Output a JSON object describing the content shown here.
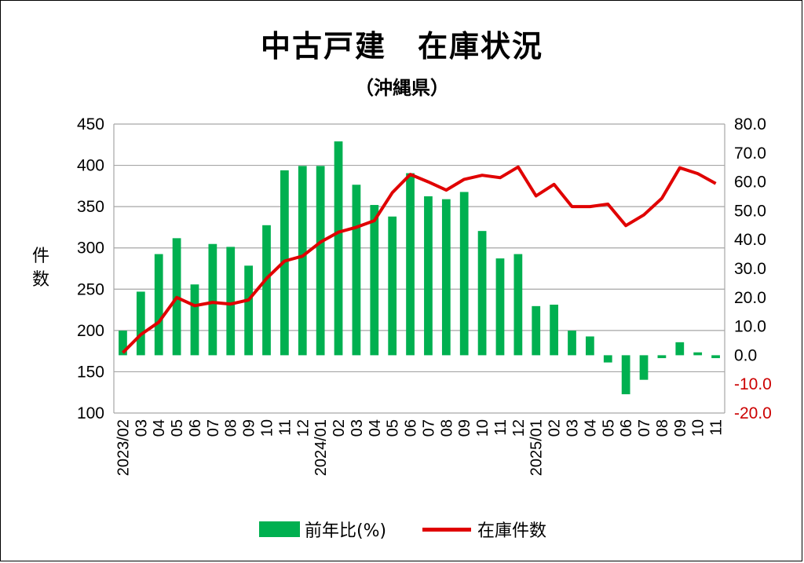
{
  "chart_data": {
    "type": "bar+line",
    "title": "中古戸建　在庫状況",
    "subtitle": "（沖縄県）",
    "ylabel": "件数",
    "y_left_range": [
      100,
      450
    ],
    "y_left_ticks": [
      "450",
      "400",
      "350",
      "300",
      "250",
      "200",
      "150",
      "100"
    ],
    "y_right_range": [
      -20,
      80
    ],
    "y_right_ticks": [
      "80.0",
      "70.0",
      "60.0",
      "50.0",
      "40.0",
      "30.0",
      "20.0",
      "10.0",
      "0.0",
      "-10.0",
      "-20.0"
    ],
    "y_right_negative_color": "#cc0000",
    "grid": true,
    "categories": [
      "2023/02",
      "03",
      "04",
      "05",
      "06",
      "07",
      "08",
      "09",
      "10",
      "11",
      "12",
      "2024/01",
      "02",
      "03",
      "04",
      "05",
      "06",
      "07",
      "08",
      "09",
      "10",
      "11",
      "12",
      "2025/01",
      "02",
      "03",
      "04",
      "05",
      "06",
      "07",
      "08",
      "09",
      "10",
      "11"
    ],
    "series": [
      {
        "name": "前年比(%)",
        "type": "bar",
        "axis": "right",
        "color": "#00b050",
        "values": [
          8.5,
          22,
          35,
          40.5,
          24.5,
          38.5,
          37.5,
          31,
          45,
          64,
          65.5,
          65.5,
          74,
          59,
          52,
          48,
          63,
          55,
          54,
          56.5,
          43,
          33.5,
          35,
          17,
          17.5,
          8.5,
          6.5,
          -2.5,
          -13.5,
          -8.5,
          -1,
          4.5,
          1,
          -1
        ]
      },
      {
        "name": "在庫件数",
        "type": "line",
        "axis": "left",
        "color": "#e00000",
        "values": [
          173,
          195,
          210,
          240,
          230,
          234,
          232,
          237,
          263,
          284,
          290,
          307,
          319,
          325,
          333,
          367,
          389,
          380,
          370,
          383,
          388,
          385,
          398,
          363,
          377,
          350,
          350,
          353,
          327,
          340,
          360,
          397,
          390,
          378
        ]
      }
    ],
    "legend_position": "bottom",
    "legend": [
      "前年比(%)",
      "在庫件数"
    ]
  }
}
